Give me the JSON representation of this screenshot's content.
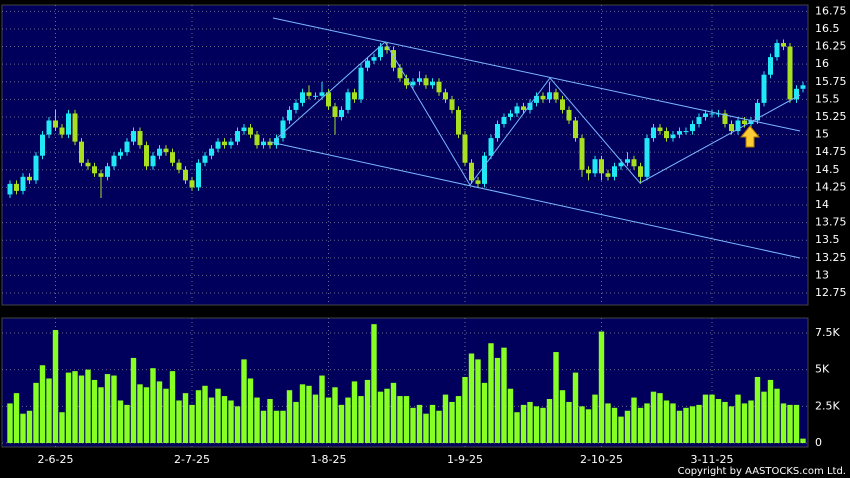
{
  "chart_data": {
    "type": "candlestick",
    "categories": [
      null,
      null,
      null,
      null,
      null,
      null,
      null,
      "2-6-25",
      null,
      null,
      null,
      null,
      null,
      null,
      null,
      null,
      null,
      null,
      null,
      null,
      null,
      null,
      null,
      null,
      null,
      null,
      null,
      null,
      "2-7-25",
      null,
      null,
      null,
      null,
      null,
      null,
      null,
      null,
      null,
      null,
      null,
      null,
      null,
      null,
      null,
      null,
      null,
      null,
      null,
      null,
      "1-8-25",
      null,
      null,
      null,
      null,
      null,
      null,
      null,
      null,
      null,
      null,
      null,
      null,
      null,
      null,
      null,
      null,
      null,
      null,
      null,
      null,
      "1-9-25",
      null,
      null,
      null,
      null,
      null,
      null,
      null,
      null,
      null,
      null,
      null,
      null,
      null,
      null,
      null,
      null,
      null,
      null,
      null,
      null,
      "2-10-25",
      null,
      null,
      null,
      null,
      null,
      null,
      null,
      null,
      null,
      null,
      null,
      null,
      null,
      null,
      null,
      null,
      "3-11-25",
      null,
      null,
      null,
      null,
      null,
      null,
      null,
      null,
      null,
      null,
      null,
      null,
      null,
      null
    ],
    "open": [
      14.15,
      14.3,
      14.2,
      14.4,
      14.35,
      14.7,
      15.0,
      15.2,
      15.1,
      15.0,
      15.3,
      14.9,
      14.6,
      14.55,
      14.45,
      14.4,
      14.55,
      14.7,
      14.75,
      14.9,
      15.05,
      14.85,
      14.55,
      14.7,
      14.8,
      14.75,
      14.6,
      14.5,
      14.35,
      14.25,
      14.6,
      14.7,
      14.8,
      14.9,
      14.85,
      14.9,
      15.05,
      15.1,
      15.0,
      14.85,
      14.9,
      14.85,
      14.95,
      15.2,
      15.35,
      15.45,
      15.6,
      15.55,
      15.55,
      15.6,
      15.4,
      15.25,
      15.35,
      15.6,
      15.5,
      15.95,
      16.05,
      16.1,
      16.25,
      16.2,
      15.95,
      15.8,
      15.7,
      15.75,
      15.8,
      15.7,
      15.75,
      15.6,
      15.5,
      15.35,
      15.0,
      14.6,
      14.35,
      14.3,
      14.7,
      14.95,
      15.15,
      15.25,
      15.3,
      15.4,
      15.35,
      15.45,
      15.55,
      15.5,
      15.6,
      15.5,
      15.35,
      15.2,
      14.95,
      14.5,
      14.45,
      14.65,
      14.45,
      14.4,
      14.55,
      14.6,
      14.65,
      14.55,
      14.4,
      14.95,
      15.1,
      15.05,
      14.95,
      15.0,
      15.05,
      15.05,
      15.15,
      15.25,
      15.3,
      15.3,
      15.3,
      15.15,
      15.05,
      15.2,
      15.15,
      15.2,
      15.45,
      15.85,
      16.1,
      16.3,
      16.25,
      15.5,
      15.65
    ],
    "high": [
      14.35,
      14.35,
      14.45,
      14.45,
      14.75,
      15.05,
      15.25,
      15.35,
      15.15,
      15.35,
      15.35,
      14.95,
      14.65,
      14.6,
      14.5,
      14.6,
      14.75,
      14.8,
      14.95,
      15.1,
      15.1,
      14.9,
      14.75,
      14.85,
      14.85,
      14.8,
      14.65,
      14.55,
      14.4,
      14.65,
      14.75,
      14.85,
      14.95,
      14.95,
      14.95,
      15.1,
      15.15,
      15.15,
      15.05,
      14.95,
      14.95,
      15.0,
      15.25,
      15.4,
      15.5,
      15.65,
      15.7,
      15.6,
      15.75,
      15.65,
      15.45,
      15.4,
      15.65,
      15.65,
      16.0,
      16.1,
      16.15,
      16.3,
      16.3,
      16.25,
      16.0,
      15.85,
      15.8,
      15.9,
      15.85,
      15.8,
      15.8,
      15.65,
      15.55,
      15.4,
      15.05,
      14.65,
      14.4,
      14.75,
      15.0,
      15.2,
      15.3,
      15.35,
      15.45,
      15.45,
      15.5,
      15.6,
      15.6,
      15.75,
      15.65,
      15.55,
      15.4,
      15.25,
      15.0,
      14.55,
      14.7,
      14.7,
      14.5,
      14.6,
      14.65,
      14.75,
      14.7,
      14.6,
      15.0,
      15.15,
      15.15,
      15.1,
      15.05,
      15.1,
      15.1,
      15.2,
      15.3,
      15.35,
      15.35,
      15.35,
      15.35,
      15.2,
      15.25,
      15.25,
      15.25,
      15.5,
      15.9,
      16.15,
      16.35,
      16.35,
      16.3,
      15.7,
      15.75
    ],
    "low": [
      14.1,
      14.15,
      14.15,
      14.3,
      14.3,
      14.65,
      14.95,
      15.05,
      14.95,
      14.95,
      14.85,
      14.55,
      14.5,
      14.4,
      14.1,
      14.35,
      14.5,
      14.65,
      14.7,
      14.85,
      14.8,
      14.5,
      14.5,
      14.65,
      14.7,
      14.55,
      14.45,
      14.3,
      14.2,
      14.2,
      14.55,
      14.65,
      14.75,
      14.8,
      14.8,
      14.85,
      15.0,
      14.95,
      14.8,
      14.8,
      14.8,
      14.8,
      14.9,
      15.15,
      15.3,
      15.4,
      15.5,
      15.5,
      15.5,
      15.35,
      15.0,
      15.2,
      15.3,
      15.45,
      15.45,
      15.9,
      16.0,
      16.05,
      16.15,
      15.9,
      15.75,
      15.65,
      15.65,
      15.7,
      15.65,
      15.65,
      15.55,
      15.45,
      15.3,
      14.95,
      14.55,
      14.3,
      14.25,
      14.25,
      14.65,
      14.9,
      15.1,
      15.2,
      15.25,
      15.3,
      15.3,
      15.4,
      15.45,
      15.45,
      15.45,
      15.3,
      15.15,
      14.9,
      14.4,
      14.35,
      14.4,
      14.35,
      14.35,
      14.35,
      14.5,
      14.55,
      14.5,
      14.3,
      14.35,
      14.9,
      15.0,
      14.9,
      14.9,
      14.95,
      15.0,
      15.0,
      15.1,
      15.2,
      15.25,
      15.25,
      15.1,
      15.0,
      15.0,
      15.1,
      15.1,
      15.15,
      15.4,
      15.8,
      16.05,
      16.2,
      15.45,
      15.45,
      15.6
    ],
    "close": [
      14.3,
      14.2,
      14.4,
      14.35,
      14.7,
      15.0,
      15.2,
      15.1,
      15.0,
      15.3,
      14.9,
      14.6,
      14.55,
      14.45,
      14.4,
      14.55,
      14.7,
      14.75,
      14.9,
      15.05,
      14.85,
      14.55,
      14.7,
      14.8,
      14.75,
      14.6,
      14.5,
      14.35,
      14.25,
      14.6,
      14.7,
      14.8,
      14.9,
      14.85,
      14.9,
      15.05,
      15.1,
      15.0,
      14.85,
      14.9,
      14.85,
      14.95,
      15.2,
      15.35,
      15.45,
      15.6,
      15.55,
      15.55,
      15.6,
      15.4,
      15.25,
      15.35,
      15.6,
      15.5,
      15.95,
      16.05,
      16.1,
      16.25,
      16.2,
      15.95,
      15.8,
      15.7,
      15.75,
      15.8,
      15.7,
      15.75,
      15.6,
      15.5,
      15.35,
      15.0,
      14.6,
      14.35,
      14.3,
      14.7,
      14.95,
      15.15,
      15.25,
      15.3,
      15.4,
      15.35,
      15.45,
      15.55,
      15.5,
      15.6,
      15.5,
      15.35,
      15.2,
      14.95,
      14.5,
      14.45,
      14.65,
      14.45,
      14.4,
      14.55,
      14.6,
      14.65,
      14.55,
      14.4,
      14.95,
      15.1,
      15.05,
      14.95,
      15.0,
      15.05,
      15.05,
      15.15,
      15.25,
      15.3,
      15.3,
      15.3,
      15.15,
      15.05,
      15.2,
      15.15,
      15.2,
      15.45,
      15.85,
      16.1,
      16.3,
      16.25,
      15.5,
      15.65,
      15.7
    ],
    "volume": [
      2700,
      3400,
      2000,
      2200,
      4100,
      5300,
      4400,
      7700,
      2100,
      4800,
      4900,
      4600,
      5000,
      4300,
      3800,
      4700,
      4600,
      2900,
      2600,
      5800,
      4000,
      3800,
      5100,
      4200,
      3700,
      4900,
      2900,
      3400,
      2600,
      3600,
      3900,
      3100,
      3700,
      3200,
      2900,
      2500,
      5700,
      4400,
      3100,
      2200,
      3000,
      2200,
      2200,
      3600,
      2800,
      4000,
      3900,
      3300,
      4600,
      3100,
      3800,
      2600,
      3100,
      4200,
      3200,
      4300,
      8100,
      3500,
      3700,
      4100,
      3200,
      3200,
      2400,
      2600,
      2000,
      2600,
      2200,
      3300,
      2800,
      3200,
      4500,
      6100,
      5700,
      4100,
      6800,
      5800,
      6500,
      3700,
      2100,
      2600,
      2800,
      2500,
      2400,
      3000,
      6200,
      3600,
      2800,
      4800,
      2500,
      2300,
      3300,
      7600,
      2700,
      2400,
      1800,
      2200,
      3100,
      2400,
      2700,
      3500,
      3400,
      2900,
      2700,
      2200,
      2400,
      2500,
      2600,
      3300,
      3300,
      3000,
      2800,
      2500,
      3300,
      2700,
      2900,
      4500,
      3500,
      4300,
      3700,
      2700,
      2600,
      2600,
      300
    ],
    "ylim": [
      12.58,
      16.84
    ],
    "yticks": [
      12.75,
      13,
      13.25,
      13.5,
      13.75,
      14,
      14.25,
      14.5,
      14.75,
      15,
      15.25,
      15.5,
      15.75,
      16,
      16.25,
      16.5,
      16.75
    ],
    "volume_ylim": [
      -270,
      8520
    ],
    "volume_yticks": [
      0,
      {
        "value": 2500,
        "label": "2.5K"
      },
      {
        "value": 5000,
        "label": "5K"
      },
      {
        "value": 7500,
        "label": "7.5K"
      }
    ],
    "up_color": "#20e8f4",
    "down_color": "#a8e020",
    "volume_color": "#88ff22",
    "grid": true,
    "copyright": "Copyright by AASTOCKS.com Ltd."
  }
}
